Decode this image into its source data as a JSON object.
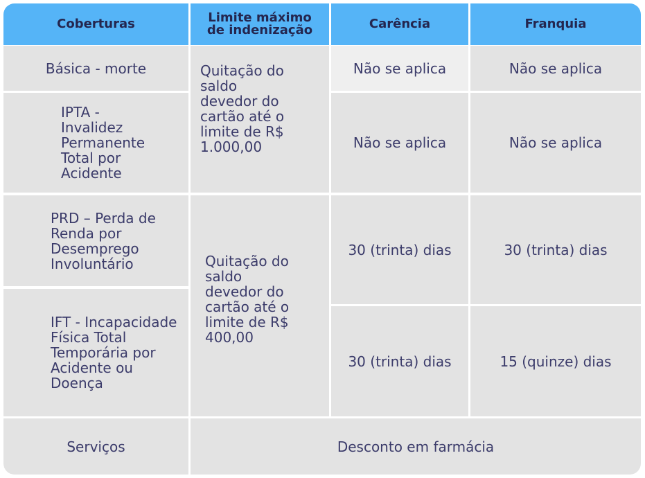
{
  "table": {
    "header": [
      "Coberturas",
      "Limite máximo de indenização",
      "Carência",
      "Franquia"
    ],
    "rows": [
      {
        "cobertura": "Básica - morte",
        "carencia": "Não se aplica",
        "franquia": "Não se aplica"
      },
      {
        "cobertura": "IPTA - Invalidez Permanente Total por Acidente",
        "carencia": "Não se aplica",
        "franquia": "Não se aplica"
      },
      {
        "cobertura": "PRD – Perda de Renda por Desemprego Involuntário",
        "carencia": "30 (trinta) dias",
        "franquia": "30 (trinta) dias"
      },
      {
        "cobertura": "IFT - Incapacidade Física Total Temporária por Acidente ou Doença",
        "carencia": "30 (trinta) dias",
        "franquia": "15 (quinze) dias"
      }
    ],
    "limites": [
      "Quitação do saldo devedor do cartão até o limite de R$ 1.000,00",
      "Quitação do saldo devedor do cartão até o limite de R$ 400,00"
    ],
    "servicos": {
      "label": "Serviços",
      "value": "Desconto em farmácia"
    }
  }
}
